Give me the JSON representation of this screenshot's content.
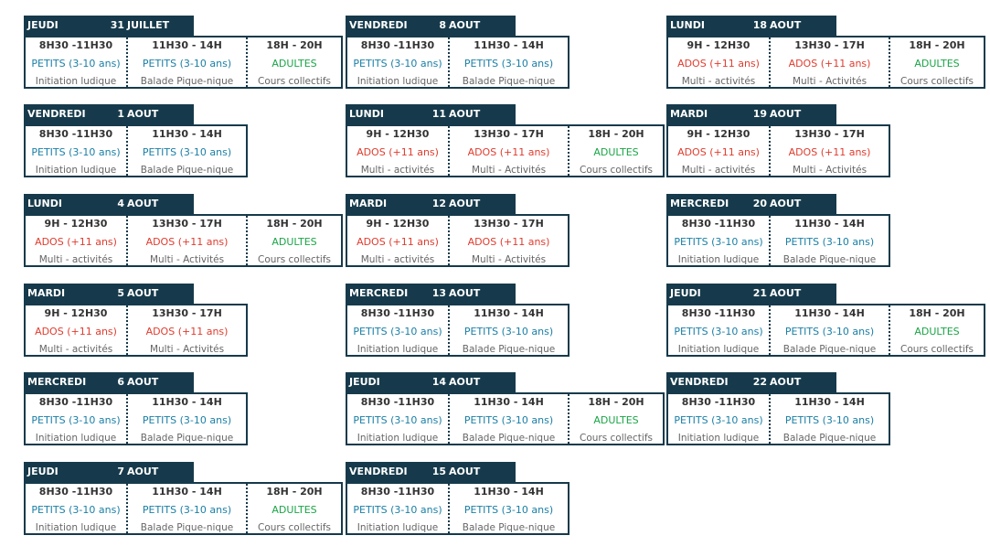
{
  "colors": {
    "header_bg": "#163a4b",
    "border": "#163a4b",
    "petits": "#1a7fa6",
    "ados": "#e03c2e",
    "adultes": "#1aa546",
    "activity": "#666666"
  },
  "cards": [
    {
      "day": "JEUDI",
      "num": "31",
      "month": "JUILLET",
      "slots": [
        {
          "time": "8H30 -11H30",
          "group": "PETITS (3-10 ans)",
          "kind": "petits",
          "activity": "Initiation ludique"
        },
        {
          "time": "11H30 - 14H",
          "group": "PETITS (3-10 ans)",
          "kind": "petits",
          "activity": "Balade Pique-nique"
        },
        {
          "time": "18H - 20H",
          "group": "ADULTES",
          "kind": "adultes",
          "activity": "Cours collectifs"
        }
      ]
    },
    {
      "day": "VENDREDI",
      "num": "1",
      "month": "AOUT",
      "slots": [
        {
          "time": "8H30 -11H30",
          "group": "PETITS (3-10 ans)",
          "kind": "petits",
          "activity": "Initiation ludique"
        },
        {
          "time": "11H30 - 14H",
          "group": "PETITS (3-10 ans)",
          "kind": "petits",
          "activity": "Balade Pique-nique"
        }
      ]
    },
    {
      "day": "LUNDI",
      "num": "4",
      "month": "AOUT",
      "slots": [
        {
          "time": "9H - 12H30",
          "group": "ADOS (+11 ans)",
          "kind": "ados",
          "activity": "Multi - activités"
        },
        {
          "time": "13H30 - 17H",
          "group": "ADOS (+11 ans)",
          "kind": "ados",
          "activity": "Multi - Activités"
        },
        {
          "time": "18H - 20H",
          "group": "ADULTES",
          "kind": "adultes",
          "activity": "Cours collectifs"
        }
      ]
    },
    {
      "day": "MARDI",
      "num": "5",
      "month": "AOUT",
      "slots": [
        {
          "time": "9H - 12H30",
          "group": "ADOS (+11 ans)",
          "kind": "ados",
          "activity": "Multi - activités"
        },
        {
          "time": "13H30 - 17H",
          "group": "ADOS (+11 ans)",
          "kind": "ados",
          "activity": "Multi - Activités"
        }
      ]
    },
    {
      "day": "MERCREDI",
      "num": "6",
      "month": "AOUT",
      "slots": [
        {
          "time": "8H30 -11H30",
          "group": "PETITS (3-10 ans)",
          "kind": "petits",
          "activity": "Initiation ludique"
        },
        {
          "time": "11H30 - 14H",
          "group": "PETITS (3-10 ans)",
          "kind": "petits",
          "activity": "Balade Pique-nique"
        }
      ]
    },
    {
      "day": "JEUDI",
      "num": "7",
      "month": "AOUT",
      "slots": [
        {
          "time": "8H30 -11H30",
          "group": "PETITS (3-10 ans)",
          "kind": "petits",
          "activity": "Initiation ludique"
        },
        {
          "time": "11H30 - 14H",
          "group": "PETITS (3-10 ans)",
          "kind": "petits",
          "activity": "Balade Pique-nique"
        },
        {
          "time": "18H - 20H",
          "group": "ADULTES",
          "kind": "adultes",
          "activity": "Cours collectifs"
        }
      ]
    },
    {
      "day": "VENDREDI",
      "num": "8",
      "month": "AOUT",
      "slots": [
        {
          "time": "8H30 -11H30",
          "group": "PETITS (3-10 ans)",
          "kind": "petits",
          "activity": "Initiation ludique"
        },
        {
          "time": "11H30 - 14H",
          "group": "PETITS (3-10 ans)",
          "kind": "petits",
          "activity": "Balade Pique-nique"
        }
      ]
    },
    {
      "day": "LUNDI",
      "num": "11",
      "month": "AOUT",
      "slots": [
        {
          "time": "9H - 12H30",
          "group": "ADOS (+11 ans)",
          "kind": "ados",
          "activity": "Multi - activités"
        },
        {
          "time": "13H30 - 17H",
          "group": "ADOS (+11 ans)",
          "kind": "ados",
          "activity": "Multi - Activités"
        },
        {
          "time": "18H - 20H",
          "group": "ADULTES",
          "kind": "adultes",
          "activity": "Cours collectifs"
        }
      ]
    },
    {
      "day": "MARDI",
      "num": "12",
      "month": "AOUT",
      "slots": [
        {
          "time": "9H - 12H30",
          "group": "ADOS (+11 ans)",
          "kind": "ados",
          "activity": "Multi - activités"
        },
        {
          "time": "13H30 - 17H",
          "group": "ADOS (+11 ans)",
          "kind": "ados",
          "activity": "Multi - Activités"
        }
      ]
    },
    {
      "day": "MERCREDI",
      "num": "13",
      "month": "AOUT",
      "slots": [
        {
          "time": "8H30 -11H30",
          "group": "PETITS (3-10 ans)",
          "kind": "petits",
          "activity": "Initiation ludique"
        },
        {
          "time": "11H30 - 14H",
          "group": "PETITS (3-10 ans)",
          "kind": "petits",
          "activity": "Balade Pique-nique"
        }
      ]
    },
    {
      "day": "JEUDI",
      "num": "14",
      "month": "AOUT",
      "slots": [
        {
          "time": "8H30 -11H30",
          "group": "PETITS (3-10 ans)",
          "kind": "petits",
          "activity": "Initiation ludique"
        },
        {
          "time": "11H30 - 14H",
          "group": "PETITS (3-10 ans)",
          "kind": "petits",
          "activity": "Balade Pique-nique"
        },
        {
          "time": "18H - 20H",
          "group": "ADULTES",
          "kind": "adultes",
          "activity": "Cours collectifs"
        }
      ]
    },
    {
      "day": "VENDREDI",
      "num": "15",
      "month": "AOUT",
      "slots": [
        {
          "time": "8H30 -11H30",
          "group": "PETITS (3-10 ans)",
          "kind": "petits",
          "activity": "Initiation ludique"
        },
        {
          "time": "11H30 - 14H",
          "group": "PETITS (3-10 ans)",
          "kind": "petits",
          "activity": "Balade Pique-nique"
        }
      ]
    },
    {
      "day": "LUNDI",
      "num": "18",
      "month": "AOUT",
      "slots": [
        {
          "time": "9H - 12H30",
          "group": "ADOS (+11 ans)",
          "kind": "ados",
          "activity": "Multi - activités"
        },
        {
          "time": "13H30 - 17H",
          "group": "ADOS (+11 ans)",
          "kind": "ados",
          "activity": "Multi - Activités"
        },
        {
          "time": "18H - 20H",
          "group": "ADULTES",
          "kind": "adultes",
          "activity": "Cours collectifs"
        }
      ]
    },
    {
      "day": "MARDI",
      "num": "19",
      "month": "AOUT",
      "slots": [
        {
          "time": "9H - 12H30",
          "group": "ADOS (+11 ans)",
          "kind": "ados",
          "activity": "Multi - activités"
        },
        {
          "time": "13H30 - 17H",
          "group": "ADOS (+11 ans)",
          "kind": "ados",
          "activity": "Multi - Activités"
        }
      ]
    },
    {
      "day": "MERCREDI",
      "num": "20",
      "month": "AOUT",
      "slots": [
        {
          "time": "8H30 -11H30",
          "group": "PETITS (3-10 ans)",
          "kind": "petits",
          "activity": "Initiation ludique"
        },
        {
          "time": "11H30 - 14H",
          "group": "PETITS (3-10 ans)",
          "kind": "petits",
          "activity": "Balade Pique-nique"
        }
      ]
    },
    {
      "day": "JEUDI",
      "num": "21",
      "month": "AOUT",
      "slots": [
        {
          "time": "8H30 -11H30",
          "group": "PETITS (3-10 ans)",
          "kind": "petits",
          "activity": "Initiation ludique"
        },
        {
          "time": "11H30 - 14H",
          "group": "PETITS (3-10 ans)",
          "kind": "petits",
          "activity": "Balade Pique-nique"
        },
        {
          "time": "18H - 20H",
          "group": "ADULTES",
          "kind": "adultes",
          "activity": "Cours collectifs"
        }
      ]
    },
    {
      "day": "VENDREDI",
      "num": "22",
      "month": "AOUT",
      "slots": [
        {
          "time": "8H30 -11H30",
          "group": "PETITS (3-10 ans)",
          "kind": "petits",
          "activity": "Initiation ludique"
        },
        {
          "time": "11H30 - 14H",
          "group": "PETITS (3-10 ans)",
          "kind": "petits",
          "activity": "Balade Pique-nique"
        }
      ]
    }
  ]
}
